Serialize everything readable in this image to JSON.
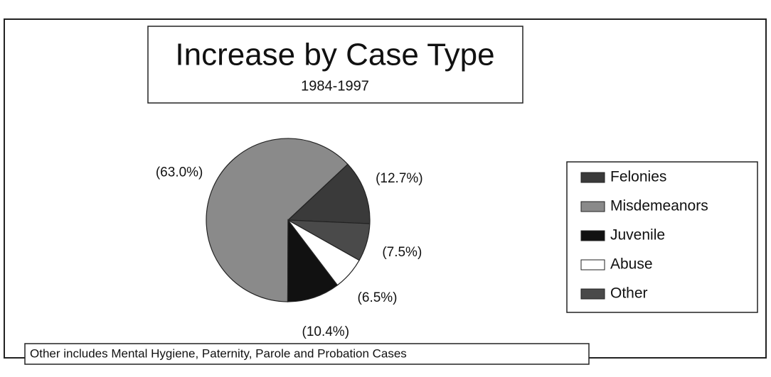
{
  "chart_data": {
    "type": "pie",
    "title": "Increase by Case Type",
    "subtitle": "1984-1997",
    "categories": [
      "Felonies",
      "Misdemeanors",
      "Juvenile",
      "Abuse",
      "Other"
    ],
    "values": [
      12.7,
      63.0,
      10.4,
      6.5,
      7.5
    ],
    "value_labels": [
      "(12.7%)",
      "(63.0%)",
      "(10.4%)",
      "(6.5%)",
      "(7.5%)"
    ],
    "colors": [
      "#3a3a3a",
      "#8a8a8a",
      "#111111",
      "#ffffff",
      "#4a4a4a"
    ],
    "legend": "right",
    "annotation": "Other includes Mental Hygiene, Paternity, Parole and Probation Cases"
  }
}
